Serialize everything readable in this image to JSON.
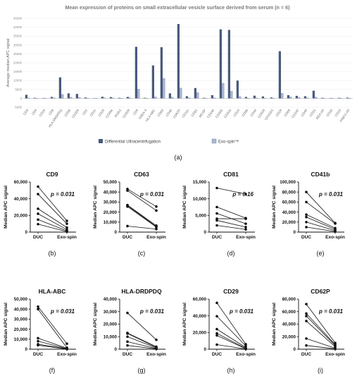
{
  "chart_data": [
    {
      "type": "bar",
      "title": "Mean expression of proteins on small extracellular vesicle surface derived from serum (n = 6)",
      "ylabel": "Average median APC signal",
      "ylim": [
        -5000,
        45000
      ],
      "yticks": [
        -5000,
        0,
        5000,
        10000,
        15000,
        20000,
        25000,
        30000,
        35000,
        40000,
        45000
      ],
      "categories": [
        "CD3",
        "CD4",
        "CD19",
        "CD8",
        "HLA-DRDPDQ",
        "CD56",
        "CD105",
        "CD2",
        "CD1c",
        "CD25",
        "CD49e",
        "ROR1",
        "CD209",
        "CD9",
        "SSEA-4",
        "HLA-ABC",
        "CD63",
        "CD40",
        "CD62P",
        "CD11c",
        "CD81",
        "MCSP",
        "CD146",
        "CD41b",
        "CD42a",
        "CD24",
        "CD86",
        "CD44",
        "CD326",
        "CD133/1",
        "CD29",
        "CD69",
        "CD142",
        "CD45",
        "CD31",
        "REA ctrl",
        "CD20",
        "CD14",
        "mIgG1 ctrl"
      ],
      "series": [
        {
          "name": "Differential Ultracentrifugation",
          "color": "#4a5a7c",
          "values": [
            2000,
            300,
            200,
            800,
            11800,
            2800,
            2500,
            500,
            100,
            900,
            700,
            300,
            800,
            29000,
            300,
            18500,
            28800,
            2800,
            41800,
            1200,
            5800,
            300,
            1800,
            38800,
            38500,
            10000,
            800,
            1500,
            1100,
            500,
            26500,
            1800,
            1400,
            1200,
            4300,
            300,
            200,
            300,
            400
          ]
        },
        {
          "name": "Exo-spin™",
          "color": "#a8b6d2",
          "values": [
            200,
            100,
            100,
            300,
            2200,
            600,
            400,
            100,
            100,
            200,
            200,
            100,
            300,
            5200,
            100,
            800,
            11200,
            700,
            5800,
            300,
            3200,
            100,
            300,
            8500,
            4000,
            1000,
            100,
            200,
            100,
            100,
            2800,
            800,
            400,
            300,
            700,
            100,
            100,
            100,
            100
          ]
        }
      ],
      "legend": "bottom",
      "panel_label": "(a)"
    },
    {
      "type": "line",
      "title": "CD9",
      "ylabel": "Median APC signal",
      "categories": [
        "DUC",
        "Exo-spin"
      ],
      "ylim": [
        0,
        60000
      ],
      "yticks": [
        0,
        20000,
        40000,
        60000
      ],
      "ytick_labels": [
        "0",
        "20,000",
        "40,000",
        "60,000"
      ],
      "p_label": "p = 0.031",
      "panel_label": "(b)",
      "pairs": [
        [
          54500,
          13500
        ],
        [
          45500,
          10000
        ],
        [
          28000,
          5500
        ],
        [
          22000,
          3000
        ],
        [
          15000,
          1500
        ],
        [
          9500,
          500
        ]
      ]
    },
    {
      "type": "line",
      "title": "CD63",
      "ylabel": "Median APC signal",
      "categories": [
        "DUC",
        "Exo-spin"
      ],
      "ylim": [
        0,
        50000
      ],
      "yticks": [
        0,
        10000,
        20000,
        30000,
        40000,
        50000
      ],
      "ytick_labels": [
        "0",
        "10,000",
        "20,000",
        "30,000",
        "40,000",
        "50,000"
      ],
      "p_label": "p = 0.031",
      "panel_label": "(c)",
      "pairs": [
        [
          43000,
          25500
        ],
        [
          41500,
          21500
        ],
        [
          27000,
          6500
        ],
        [
          26500,
          5500
        ],
        [
          25500,
          5000
        ],
        [
          6000,
          3000
        ]
      ]
    },
    {
      "type": "line",
      "title": "CD81",
      "ylabel": "Median APC signal",
      "categories": [
        "DUC",
        "Exo-spin"
      ],
      "ylim": [
        0,
        15000
      ],
      "yticks": [
        0,
        5000,
        10000,
        15000
      ],
      "ytick_labels": [
        "0",
        "5,000",
        "10,000",
        "15,000"
      ],
      "p_label": "p = 0.16",
      "panel_label": "(d)",
      "pairs": [
        [
          13200,
          11400
        ],
        [
          7500,
          4200
        ],
        [
          5600,
          2500
        ],
        [
          4000,
          4000
        ],
        [
          3500,
          1500
        ],
        [
          2000,
          800
        ]
      ]
    },
    {
      "type": "line",
      "title": "CD41b",
      "ylabel": "Median APC signal",
      "categories": [
        "DUC",
        "Exo-spin"
      ],
      "ylim": [
        0,
        100000
      ],
      "yticks": [
        0,
        20000,
        40000,
        60000,
        80000,
        100000
      ],
      "ytick_labels": [
        "0",
        "20,000",
        "40,000",
        "60,000",
        "80,000",
        "100,000"
      ],
      "p_label": "p = 0.031",
      "panel_label": "(e)",
      "pairs": [
        [
          80000,
          18000
        ],
        [
          60000,
          17000
        ],
        [
          35000,
          8000
        ],
        [
          30000,
          5500
        ],
        [
          20000,
          3000
        ],
        [
          10000,
          1000
        ]
      ]
    },
    {
      "type": "line",
      "title": "HLA-ABC",
      "ylabel": "Median APC signal",
      "categories": [
        "DUC",
        "Exo-spin"
      ],
      "ylim": [
        0,
        50000
      ],
      "yticks": [
        0,
        10000,
        20000,
        30000,
        40000,
        50000
      ],
      "ytick_labels": [
        "0",
        "10,000",
        "20,000",
        "30,000",
        "40,000",
        "50,000"
      ],
      "p_label": "p = 0.031",
      "panel_label": "(f)",
      "pairs": [
        [
          42500,
          5500
        ],
        [
          40000,
          1500
        ],
        [
          11000,
          1000
        ],
        [
          8000,
          500
        ],
        [
          5000,
          300
        ],
        [
          4000,
          100
        ]
      ]
    },
    {
      "type": "line",
      "title": "HLA-DRDPDQ",
      "ylabel": "Median APC signal",
      "categories": [
        "DUC",
        "Exo-spin"
      ],
      "ylim": [
        0,
        40000
      ],
      "yticks": [
        0,
        10000,
        20000,
        30000,
        40000
      ],
      "ytick_labels": [
        "0",
        "10,000",
        "20,000",
        "30,000",
        "40,000"
      ],
      "p_label": "p = 0.031",
      "panel_label": "(g)",
      "pairs": [
        [
          29000,
          7500
        ],
        [
          13000,
          2000
        ],
        [
          12500,
          1500
        ],
        [
          10000,
          1000
        ],
        [
          6000,
          500
        ],
        [
          3000,
          200
        ]
      ]
    },
    {
      "type": "line",
      "title": "CD29",
      "ylabel": "Median APC signal",
      "categories": [
        "DUC",
        "Exo-spin"
      ],
      "ylim": [
        0,
        60000
      ],
      "yticks": [
        0,
        20000,
        40000,
        60000
      ],
      "ytick_labels": [
        "0",
        "20,000",
        "40,000",
        "60,000"
      ],
      "p_label": "p = 0.031",
      "panel_label": "(h)",
      "pairs": [
        [
          55500,
          6000
        ],
        [
          39500,
          4000
        ],
        [
          24000,
          2000
        ],
        [
          19000,
          1000
        ],
        [
          16500,
          500
        ],
        [
          5500,
          200
        ]
      ]
    },
    {
      "type": "line",
      "title": "CD62P",
      "ylabel": "Median APC signal",
      "categories": [
        "DUC",
        "Exo-spin"
      ],
      "ylim": [
        0,
        80000
      ],
      "yticks": [
        0,
        20000,
        40000,
        60000,
        80000
      ],
      "ytick_labels": [
        "0",
        "20,000",
        "40,000",
        "60,000",
        "80,000"
      ],
      "p_label": "p = 0.031",
      "panel_label": "(i)",
      "pairs": [
        [
          72000,
          10000
        ],
        [
          57000,
          7500
        ],
        [
          53000,
          6000
        ],
        [
          45000,
          4000
        ],
        [
          17000,
          1500
        ],
        [
          6000,
          500
        ]
      ]
    }
  ]
}
